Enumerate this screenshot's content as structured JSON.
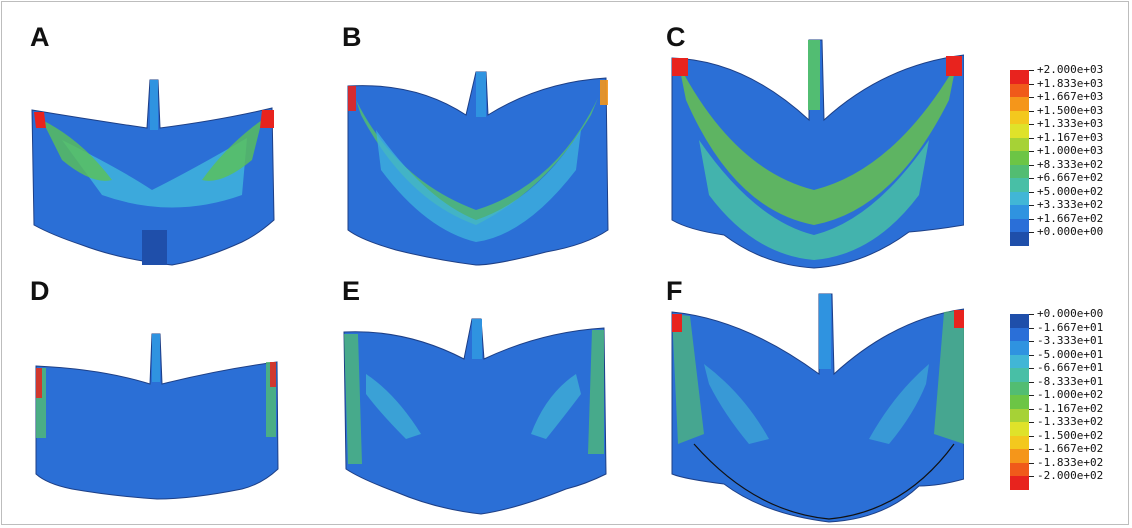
{
  "panels": [
    {
      "id": "A",
      "label": "A"
    },
    {
      "id": "B",
      "label": "B"
    },
    {
      "id": "C",
      "label": "C"
    },
    {
      "id": "D",
      "label": "D"
    },
    {
      "id": "E",
      "label": "E"
    },
    {
      "id": "F",
      "label": "F"
    }
  ],
  "legend_top": {
    "labels": [
      "+2.000e+03",
      "+1.833e+03",
      "+1.667e+03",
      "+1.500e+03",
      "+1.333e+03",
      "+1.167e+03",
      "+1.000e+03",
      "+8.333e+02",
      "+6.667e+02",
      "+5.000e+02",
      "+3.333e+02",
      "+1.667e+02",
      "+0.000e+00"
    ],
    "colors": [
      "#e8231e",
      "#f05a1a",
      "#f5961a",
      "#f3c81e",
      "#dfe22a",
      "#a6d236",
      "#6cc545",
      "#52bd72",
      "#48bfa6",
      "#41b6d6",
      "#2f93e0",
      "#2a6fd8",
      "#1f4faa"
    ]
  },
  "legend_bottom": {
    "labels": [
      "+0.000e+00",
      "-1.667e+01",
      "-3.333e+01",
      "-5.000e+01",
      "-6.667e+01",
      "-8.333e+01",
      "-1.000e+02",
      "-1.167e+02",
      "-1.333e+02",
      "-1.500e+02",
      "-1.667e+02",
      "-1.833e+02",
      "-2.000e+02"
    ],
    "colors": [
      "#1f4faa",
      "#2a6fd8",
      "#2f93e0",
      "#41b6d6",
      "#48bfa6",
      "#52bd72",
      "#6cc545",
      "#a6d236",
      "#dfe22a",
      "#f3c81e",
      "#f5961a",
      "#f05a1a",
      "#e8231e"
    ]
  }
}
